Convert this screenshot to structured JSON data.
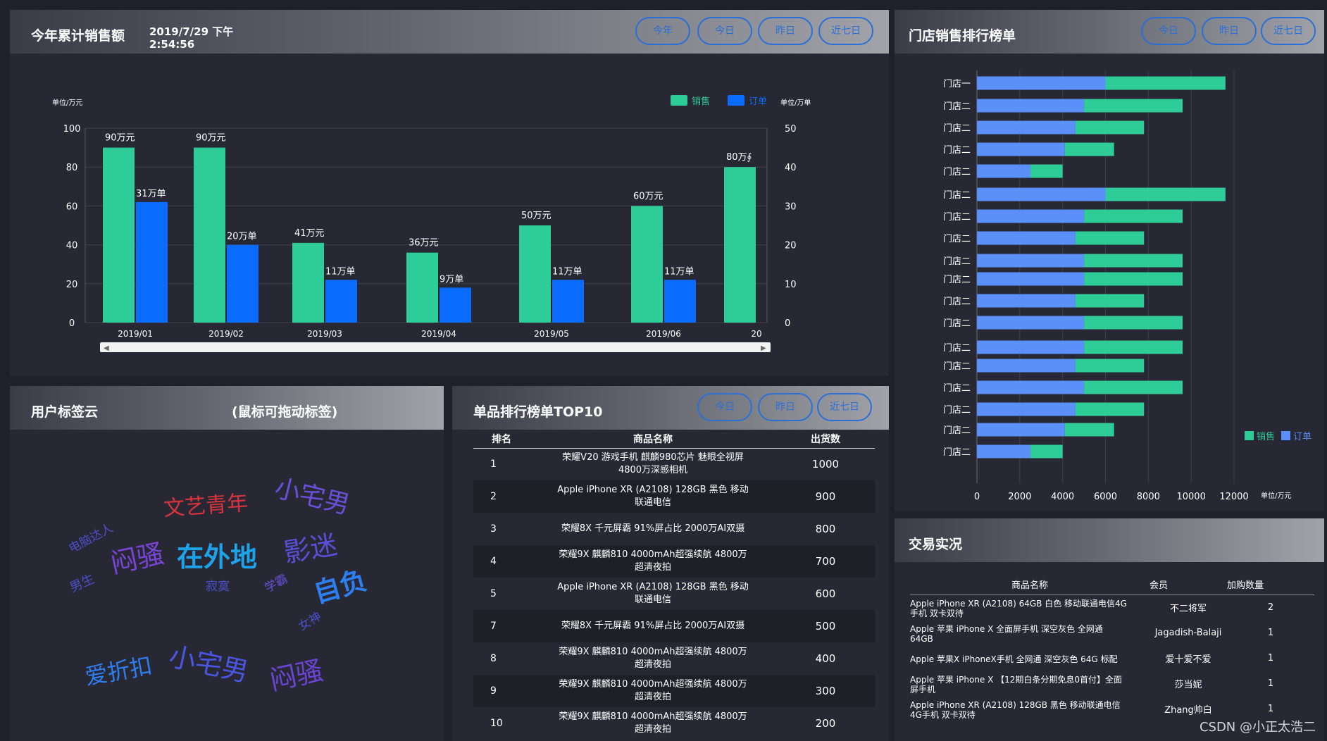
{
  "sales_panel": {
    "title": "今年累计销售额",
    "datetime_line1": "2019/7/29 下午",
    "datetime_line2": "2:54:56",
    "buttons": [
      "今年",
      "今日",
      "昨日",
      "近七日"
    ]
  },
  "store_panel": {
    "title": "门店销售排行榜单",
    "buttons": [
      "今日",
      "昨日",
      "近七日"
    ]
  },
  "tags_panel": {
    "title": "用户标签云",
    "hint": "(鼠标可拖动标签)",
    "tags": [
      {
        "text": "文艺青年",
        "color": "#d9343e"
      },
      {
        "text": "小宅男",
        "color": "#6a4fd8"
      },
      {
        "text": "电脑达人",
        "color": "#4f4fc8"
      },
      {
        "text": "闷骚",
        "color": "#7a45d6"
      },
      {
        "text": "在外地",
        "color": "#1ea3e8"
      },
      {
        "text": "影迷",
        "color": "#5a4fd8"
      },
      {
        "text": "男生",
        "color": "#4a4fc8"
      },
      {
        "text": "寂寞",
        "color": "#4a4fc8"
      },
      {
        "text": "学霸",
        "color": "#6a4fd8"
      },
      {
        "text": "自负",
        "color": "#2f7ef0"
      },
      {
        "text": "女神",
        "color": "#4a4fc8"
      },
      {
        "text": "爱折扣",
        "color": "#2f7ef0"
      },
      {
        "text": "小宅男",
        "color": "#4a55e0"
      },
      {
        "text": "闷骚",
        "color": "#6a45d6"
      }
    ]
  },
  "top10_panel": {
    "title": "单品排行榜单TOP10",
    "buttons": [
      "今日",
      "昨日",
      "近七日"
    ],
    "headers": [
      "排名",
      "商品名称",
      "出货数"
    ],
    "rows": [
      {
        "rank": "1",
        "name1": "荣耀V20 游戏手机 麒麟980芯片 魅眼全视屏",
        "name2": "4800万深感相机",
        "qty": "1000"
      },
      {
        "rank": "2",
        "name1": "Apple iPhone XR (A2108) 128GB 黑色 移动",
        "name2": "联通电信",
        "qty": "900"
      },
      {
        "rank": "3",
        "name1": "荣耀8X 千元屏霸 91%屏占比 2000万AI双摄",
        "name2": "",
        "qty": "800"
      },
      {
        "rank": "4",
        "name1": "荣耀9X 麒麟810 4000mAh超强续航 4800万",
        "name2": "超清夜拍",
        "qty": "700"
      },
      {
        "rank": "5",
        "name1": "Apple iPhone XR (A2108) 128GB 黑色 移动",
        "name2": "联通电信",
        "qty": "600"
      },
      {
        "rank": "7",
        "name1": "荣耀8X 千元屏霸 91%屏占比 2000万AI双摄",
        "name2": "",
        "qty": "500"
      },
      {
        "rank": "8",
        "name1": "荣耀9X 麒麟810 4000mAh超强续航 4800万",
        "name2": "超清夜拍",
        "qty": "400"
      },
      {
        "rank": "9",
        "name1": "荣耀9X 麒麟810 4000mAh超强续航 4800万",
        "name2": "超清夜拍",
        "qty": "300"
      },
      {
        "rank": "10",
        "name1": "荣耀9X 麒麟810 4000mAh超强续航 4800万",
        "name2": "超清夜拍",
        "qty": "200"
      }
    ]
  },
  "trade_panel": {
    "title": "交易实况",
    "headers": [
      "商品名称",
      "会员",
      "加购数量"
    ],
    "rows": [
      {
        "name1": "Apple iPhone XR (A2108) 64GB 白色 移动联通电信4G",
        "name2": "手机 双卡双待",
        "member": "不二将军",
        "qty": "2"
      },
      {
        "name1": "Apple 苹果 iPhone X 全面屏手机 深空灰色 全网通",
        "name2": "64GB",
        "member": "Jagadish-Balaji",
        "qty": "1"
      },
      {
        "name1": "Apple 苹果X iPhoneX手机 全网通 深空灰色 64G 标配",
        "name2": "",
        "member": "爱十爱不爱",
        "qty": "1"
      },
      {
        "name1": "Apple 苹果 iPhone X 【12期白条分期免息0首付】全面",
        "name2": "屏手机",
        "member": "莎当妮",
        "qty": "1"
      },
      {
        "name1": "Apple iPhone XR (A2108) 128GB 黑色 移动联通电信",
        "name2": "4G手机 双卡双待",
        "member": "Zhang帅白",
        "qty": "1"
      }
    ]
  },
  "watermark": "CSDN @小正太浩二",
  "colors": {
    "sales": "#2ecc96",
    "orders": "#0a6cff",
    "store_sales": "#2ecc96",
    "store_orders": "#5b8ff9",
    "pill": "#2a6fd8"
  },
  "chart_data": [
    {
      "type": "bar",
      "legend": [
        "销售",
        "订单"
      ],
      "legend_position": "top-right",
      "left_unit": "单位/万元",
      "right_unit": "单位/万单",
      "categories": [
        "2019/01",
        "2019/02",
        "2019/03",
        "2019/04",
        "2019/05",
        "2019/06",
        "20"
      ],
      "series": [
        {
          "name": "销售",
          "values": [
            90,
            90,
            41,
            36,
            50,
            60,
            80
          ],
          "labels": [
            "90万元",
            "90万元",
            "41万元",
            "36万元",
            "50万元",
            "60万元",
            "80万∮"
          ],
          "axis": "left"
        },
        {
          "name": "订单",
          "values": [
            31,
            20,
            11,
            9,
            11,
            11,
            null
          ],
          "labels": [
            "31万单",
            "20万单",
            "11万单",
            "9万单",
            "11万单",
            "11万单",
            ""
          ],
          "axis": "right"
        }
      ],
      "ylim_left": [
        0,
        100
      ],
      "ylim_right": [
        0,
        50
      ],
      "left_ticks": [
        0,
        20,
        40,
        60,
        80,
        100
      ],
      "right_ticks": [
        0,
        10,
        20,
        30,
        40,
        50
      ],
      "grid": true
    },
    {
      "type": "bar",
      "orientation": "horizontal",
      "stacked": true,
      "legend": [
        "销售",
        "订单"
      ],
      "legend_position": "bottom-right",
      "unit": "单位/万元",
      "categories": [
        "门店一",
        "门店二",
        "门店二",
        "门店二",
        "门店二",
        "门店二",
        "门店二",
        "门店二",
        "门店二",
        "门店二",
        "门店二",
        "门店二",
        "门店二",
        "门店二",
        "门店二",
        "门店二",
        "门店二",
        "门店二"
      ],
      "series": [
        {
          "name": "订单",
          "values": [
            6000,
            5000,
            4600,
            4100,
            2500,
            6000,
            5000,
            4600,
            5000,
            5000,
            4600,
            5000,
            5000,
            4600,
            5000,
            4600,
            4100,
            2500
          ]
        },
        {
          "name": "销售",
          "values": [
            5600,
            4600,
            3200,
            2300,
            1500,
            5600,
            4600,
            3200,
            4600,
            4600,
            3200,
            4600,
            4600,
            3200,
            4600,
            3200,
            2300,
            1500
          ]
        }
      ],
      "xlim": [
        0,
        12000
      ],
      "x_ticks": [
        0,
        2000,
        4000,
        6000,
        8000,
        10000,
        12000
      ],
      "grid": true
    }
  ]
}
